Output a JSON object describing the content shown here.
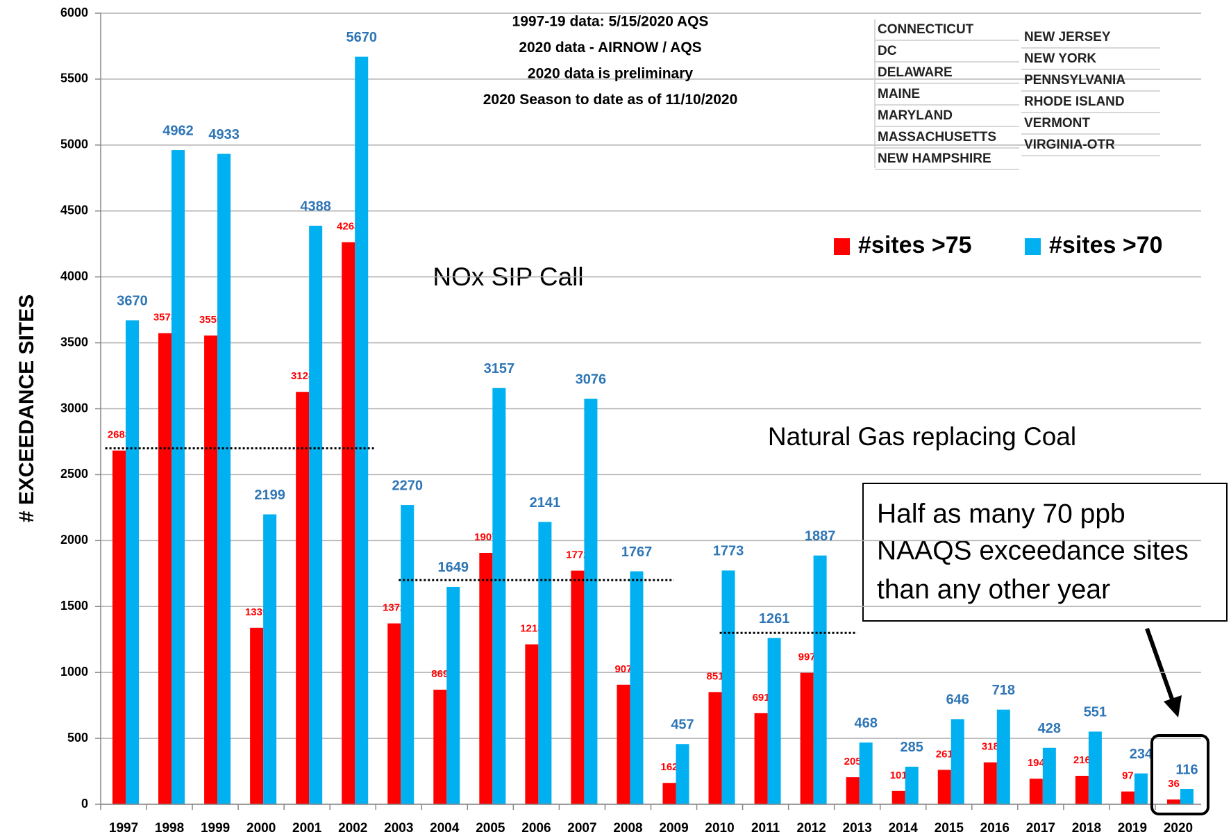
{
  "chart_data": {
    "type": "bar",
    "categories": [
      "1997",
      "1998",
      "1999",
      "2000",
      "2001",
      "2002",
      "2003",
      "2004",
      "2005",
      "2006",
      "2007",
      "2008",
      "2009",
      "2010",
      "2011",
      "2012",
      "2013",
      "2014",
      "2015",
      "2016",
      "2017",
      "2018",
      "2019",
      "2020"
    ],
    "series": [
      {
        "name": "#sites >75",
        "color": "#ff0000",
        "label_color": "#ff0000",
        "values": [
          2683,
          3573,
          3555,
          1339,
          3128,
          4263,
          1372,
          869,
          1907,
          1213,
          1772,
          907,
          162,
          851,
          691,
          997,
          205,
          101,
          261,
          318,
          194,
          216,
          97,
          36
        ]
      },
      {
        "name": "#sites >70",
        "color": "#00b0f0",
        "label_color": "#2e75b6",
        "values": [
          3670,
          4962,
          4933,
          2199,
          4388,
          5670,
          2270,
          1649,
          3157,
          2141,
          3076,
          1767,
          457,
          1773,
          1261,
          1887,
          468,
          285,
          646,
          718,
          428,
          551,
          234,
          116
        ]
      }
    ],
    "ylim": [
      0,
      6000
    ],
    "yticks": [
      0,
      500,
      1000,
      1500,
      2000,
      2500,
      3000,
      3500,
      4000,
      4500,
      5000,
      5500,
      6000
    ],
    "y_label": "# EXCEEDANCE SITES",
    "grid": true,
    "legend": "upper right",
    "notes": [
      "1997-19 data:  5/15/2020 AQS",
      "2020 data - AIRNOW  / AQS",
      "2020 data is preliminary",
      "2020 Season to date as of 11/10/2020"
    ],
    "states": [
      "CONNECTICUT",
      "DC",
      "DELAWARE",
      "MAINE",
      "MARYLAND",
      "MASSACHUSETTS",
      "NEW HAMPSHIRE",
      "NEW JERSEY",
      "NEW YORK",
      "PENNSYLVANIA",
      "RHODE ISLAND",
      "VERMONT",
      "VIRGINIA-OTR"
    ],
    "annotations": [
      "NOx SIP Call",
      "Natural Gas replacing Coal"
    ],
    "callout": [
      "Half as many 70 ppb",
      "NAAQS exceedance sites",
      "than any other year"
    ],
    "reference_lines": [
      {
        "value": 2700,
        "from": "1997",
        "to": "2002"
      },
      {
        "value": 1700,
        "from": "2003",
        "to": "2009"
      },
      {
        "value": 1300,
        "from": "2010",
        "to": "2013"
      }
    ]
  }
}
